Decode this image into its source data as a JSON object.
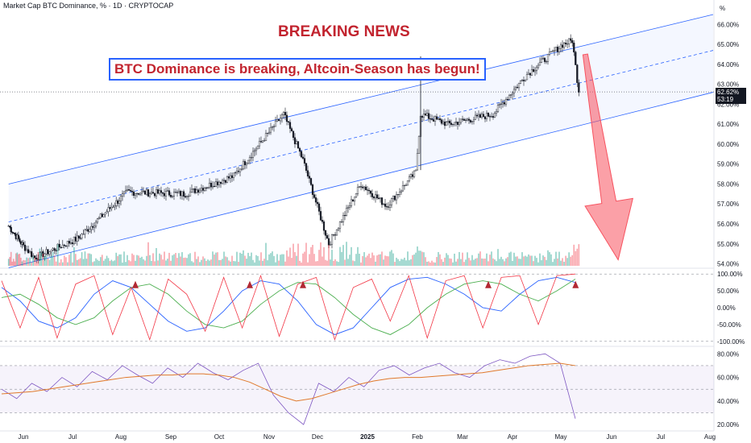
{
  "header": {
    "title": "Market Cap BTC Dominance, % · 1D · CRYPTOCAP",
    "unit": "%"
  },
  "annotations": {
    "headline": "BREAKING NEWS",
    "callout": "BTC Dominance is breaking, Altcoin-Season has begun!"
  },
  "price_tag": {
    "value": "62.62%",
    "countdown": "53:19"
  },
  "colors": {
    "up": "#089981",
    "down": "#f23645",
    "channel": "#2962ff",
    "arrow": "#f7525f",
    "stoch_k": "#2962ff",
    "stoch_d": "#ff6d00",
    "osc": "#f23645",
    "rsi": "#7e57c2",
    "rsi_ma": "#e0792b"
  },
  "chart_data": [
    {
      "type": "candlestick",
      "title": "Market Cap BTC Dominance, % · 1D · CRYPTOCAP",
      "x_ticks": [
        "Jun",
        "Jul",
        "Aug",
        "Sep",
        "Oct",
        "Nov",
        "Dec",
        "2025",
        "Feb",
        "Mar",
        "Apr",
        "May",
        "Jun",
        "Jul",
        "Aug"
      ],
      "y_ticks": [
        "66.00%",
        "65.00%",
        "64.00%",
        "63.00%",
        "62.00%",
        "61.00%",
        "60.00%",
        "59.00%",
        "58.00%",
        "57.00%",
        "56.00%",
        "55.00%",
        "54.00%"
      ],
      "ylim": [
        53.9,
        66.5
      ],
      "key_points": [
        {
          "x": "2024-05-20",
          "y": 55.9
        },
        {
          "x": "2024-06-08",
          "y": 54.3
        },
        {
          "x": "2024-07-05",
          "y": 55.3
        },
        {
          "x": "2024-08-05",
          "y": 57.6
        },
        {
          "x": "2024-09-10",
          "y": 57.5
        },
        {
          "x": "2024-10-10",
          "y": 58.4
        },
        {
          "x": "2024-11-10",
          "y": 61.5
        },
        {
          "x": "2024-11-22",
          "y": 59.2
        },
        {
          "x": "2024-12-08",
          "y": 55.0
        },
        {
          "x": "2024-12-28",
          "y": 58.0
        },
        {
          "x": "2025-01-13",
          "y": 56.9
        },
        {
          "x": "2025-01-31",
          "y": 58.6
        },
        {
          "x": "2025-02-03",
          "y": 61.5
        },
        {
          "x": "2025-02-20",
          "y": 61.0
        },
        {
          "x": "2025-03-20",
          "y": 61.5
        },
        {
          "x": "2025-04-10",
          "y": 63.5
        },
        {
          "x": "2025-05-02",
          "y": 65.0
        },
        {
          "x": "2025-05-08",
          "y": 65.2
        },
        {
          "x": "2025-05-12",
          "y": 62.6
        }
      ],
      "last_price": 62.62,
      "channel": {
        "upper": [
          {
            "x": "2024-05-20",
            "y": 58.0
          },
          {
            "x": "2025-08-05",
            "y": 66.5
          }
        ],
        "mid": [
          {
            "x": "2024-05-20",
            "y": 56.1
          },
          {
            "x": "2025-08-05",
            "y": 64.7
          }
        ],
        "lower": [
          {
            "x": "2024-05-20",
            "y": 53.8
          },
          {
            "x": "2025-08-05",
            "y": 62.6
          }
        ]
      },
      "projection": {
        "from": {
          "x": "2025-05-12",
          "y": 64.5
        },
        "to": {
          "x": "2025-06-05",
          "y": 54.2
        }
      }
    },
    {
      "type": "line",
      "title": "",
      "y_ticks": [
        "100.00%",
        "50.00%",
        "0.00%",
        "-50.00%",
        "-100.00%"
      ],
      "ylim": [
        -110,
        110
      ],
      "series": [
        {
          "values": [
            60,
            20,
            -40,
            -60,
            -30,
            40,
            80,
            60,
            10,
            -40,
            -70,
            -60,
            -10,
            50,
            80,
            70,
            20,
            -50,
            -80,
            -60,
            0,
            60,
            85,
            90,
            70,
            40,
            0,
            -10,
            40,
            80,
            90,
            75
          ]
        },
        {
          "values": [
            30,
            40,
            10,
            -30,
            -50,
            -30,
            20,
            60,
            70,
            40,
            -10,
            -50,
            -60,
            -40,
            10,
            50,
            75,
            70,
            30,
            -20,
            -60,
            -80,
            -50,
            0,
            40,
            70,
            80,
            70,
            40,
            20,
            50,
            85
          ]
        },
        {
          "values": [
            80,
            -60,
            90,
            -90,
            70,
            95,
            -80,
            60,
            -95,
            85,
            40,
            -70,
            90,
            -60,
            95,
            -85,
            70,
            90,
            -95,
            60,
            85,
            -40,
            95,
            -90,
            80,
            95,
            -60,
            90,
            95,
            -50,
            95,
            100
          ]
        }
      ],
      "signals_up": [
        "2024-08-10",
        "2024-10-20",
        "2024-11-22",
        "2025-03-17",
        "2025-05-10"
      ]
    },
    {
      "type": "line",
      "title": "",
      "y_ticks": [
        "80.00%",
        "60.00%",
        "40.00%",
        "20.00%"
      ],
      "ylim": [
        18,
        85
      ],
      "series": [
        {
          "values": [
            50,
            42,
            55,
            48,
            60,
            52,
            65,
            58,
            70,
            62,
            55,
            68,
            60,
            72,
            64,
            58,
            66,
            72,
            45,
            30,
            20,
            55,
            48,
            60,
            52,
            66,
            70,
            62,
            68,
            72,
            64,
            60,
            70,
            75,
            72,
            78,
            80,
            72,
            25
          ]
        },
        {
          "values": [
            46,
            47,
            48,
            50,
            52,
            54,
            56,
            58,
            60,
            61,
            62,
            62,
            63,
            63,
            62,
            60,
            56,
            50,
            44,
            40,
            42,
            46,
            50,
            54,
            57,
            59,
            60,
            60,
            61,
            62,
            63,
            64,
            66,
            68,
            70,
            71,
            72,
            70
          ]
        }
      ],
      "overbought": 70,
      "oversold": 30
    }
  ]
}
